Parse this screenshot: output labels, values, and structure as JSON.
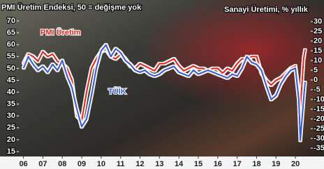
{
  "chart_data": {
    "type": "line",
    "title": "PMI Üretim Endeksi, 50 = değişme yok",
    "y2_title": "Sanayi Üretimi, % yıllık",
    "x": [
      2006,
      2006.25,
      2006.5,
      2006.75,
      2007,
      2007.25,
      2007.5,
      2007.75,
      2008,
      2008.25,
      2008.5,
      2008.75,
      2009,
      2009.25,
      2009.5,
      2009.75,
      2010,
      2010.25,
      2010.5,
      2010.75,
      2011,
      2011.25,
      2011.5,
      2011.75,
      2012,
      2012.25,
      2012.5,
      2012.75,
      2013,
      2013.25,
      2013.5,
      2013.75,
      2014,
      2014.25,
      2014.5,
      2014.75,
      2015,
      2015.25,
      2015.5,
      2015.75,
      2016,
      2016.25,
      2016.5,
      2016.75,
      2017,
      2017.25,
      2017.5,
      2017.75,
      2018,
      2018.25,
      2018.5,
      2018.75,
      2019,
      2019.25,
      2019.5,
      2019.75,
      2020,
      2020.17,
      2020.25,
      2020.42,
      2020.5
    ],
    "series": [
      {
        "name": "PMI Üretim",
        "color": "#e8201a",
        "values": [
          52,
          56,
          55,
          53,
          57,
          55,
          56,
          53,
          52,
          50,
          45,
          30,
          28,
          40,
          50,
          54,
          57,
          58,
          55,
          54,
          56,
          54,
          51,
          50,
          52,
          51,
          50,
          49,
          52,
          52,
          53,
          54,
          51,
          49,
          50,
          51,
          50,
          50,
          49,
          50,
          50,
          48,
          50,
          49,
          52,
          54,
          54,
          55,
          55,
          48,
          45,
          43,
          45,
          46,
          48,
          50,
          51,
          40,
          33,
          54,
          58
        ]
      },
      {
        "name": "TÜİK",
        "color": "#3a5bd8",
        "axis": "y2",
        "values": [
          6,
          12,
          8,
          5,
          7,
          4,
          8,
          5,
          10,
          2,
          -4,
          -15,
          -24,
          -20,
          -8,
          6,
          15,
          18,
          12,
          16,
          14,
          10,
          8,
          5,
          4,
          5,
          3,
          2,
          3,
          5,
          6,
          7,
          4,
          3,
          2,
          5,
          3,
          4,
          5,
          4,
          3,
          2,
          1,
          3,
          2,
          6,
          12,
          9,
          8,
          5,
          -3,
          -10,
          -8,
          -2,
          2,
          5,
          6,
          -10,
          -31,
          -10,
          -1
        ]
      }
    ],
    "xlim": [
      2005.8,
      2020.75
    ],
    "xticks": [
      {
        "value": 2006,
        "label": "06"
      },
      {
        "value": 2007,
        "label": "07"
      },
      {
        "value": 2008,
        "label": "08"
      },
      {
        "value": 2009,
        "label": "09"
      },
      {
        "value": 2010,
        "label": "10"
      },
      {
        "value": 2011,
        "label": "11"
      },
      {
        "value": 2012,
        "label": "12"
      },
      {
        "value": 2013,
        "label": "13"
      },
      {
        "value": 2014,
        "label": "14"
      },
      {
        "value": 2015,
        "label": "15"
      },
      {
        "value": 2016,
        "label": "16"
      },
      {
        "value": 2017,
        "label": "17"
      },
      {
        "value": 2018,
        "label": "18"
      },
      {
        "value": 2019,
        "label": "19"
      },
      {
        "value": 2020,
        "label": "20"
      }
    ],
    "ylim": [
      15,
      70
    ],
    "yticks": [
      70,
      65,
      60,
      55,
      50,
      45,
      40,
      35,
      30,
      25,
      20,
      15
    ],
    "y2lim": [
      -35,
      30
    ],
    "y2ticks": [
      30,
      25,
      20,
      15,
      10,
      5,
      0,
      -5,
      -10,
      -15,
      -20,
      -25,
      -30,
      -35
    ]
  }
}
